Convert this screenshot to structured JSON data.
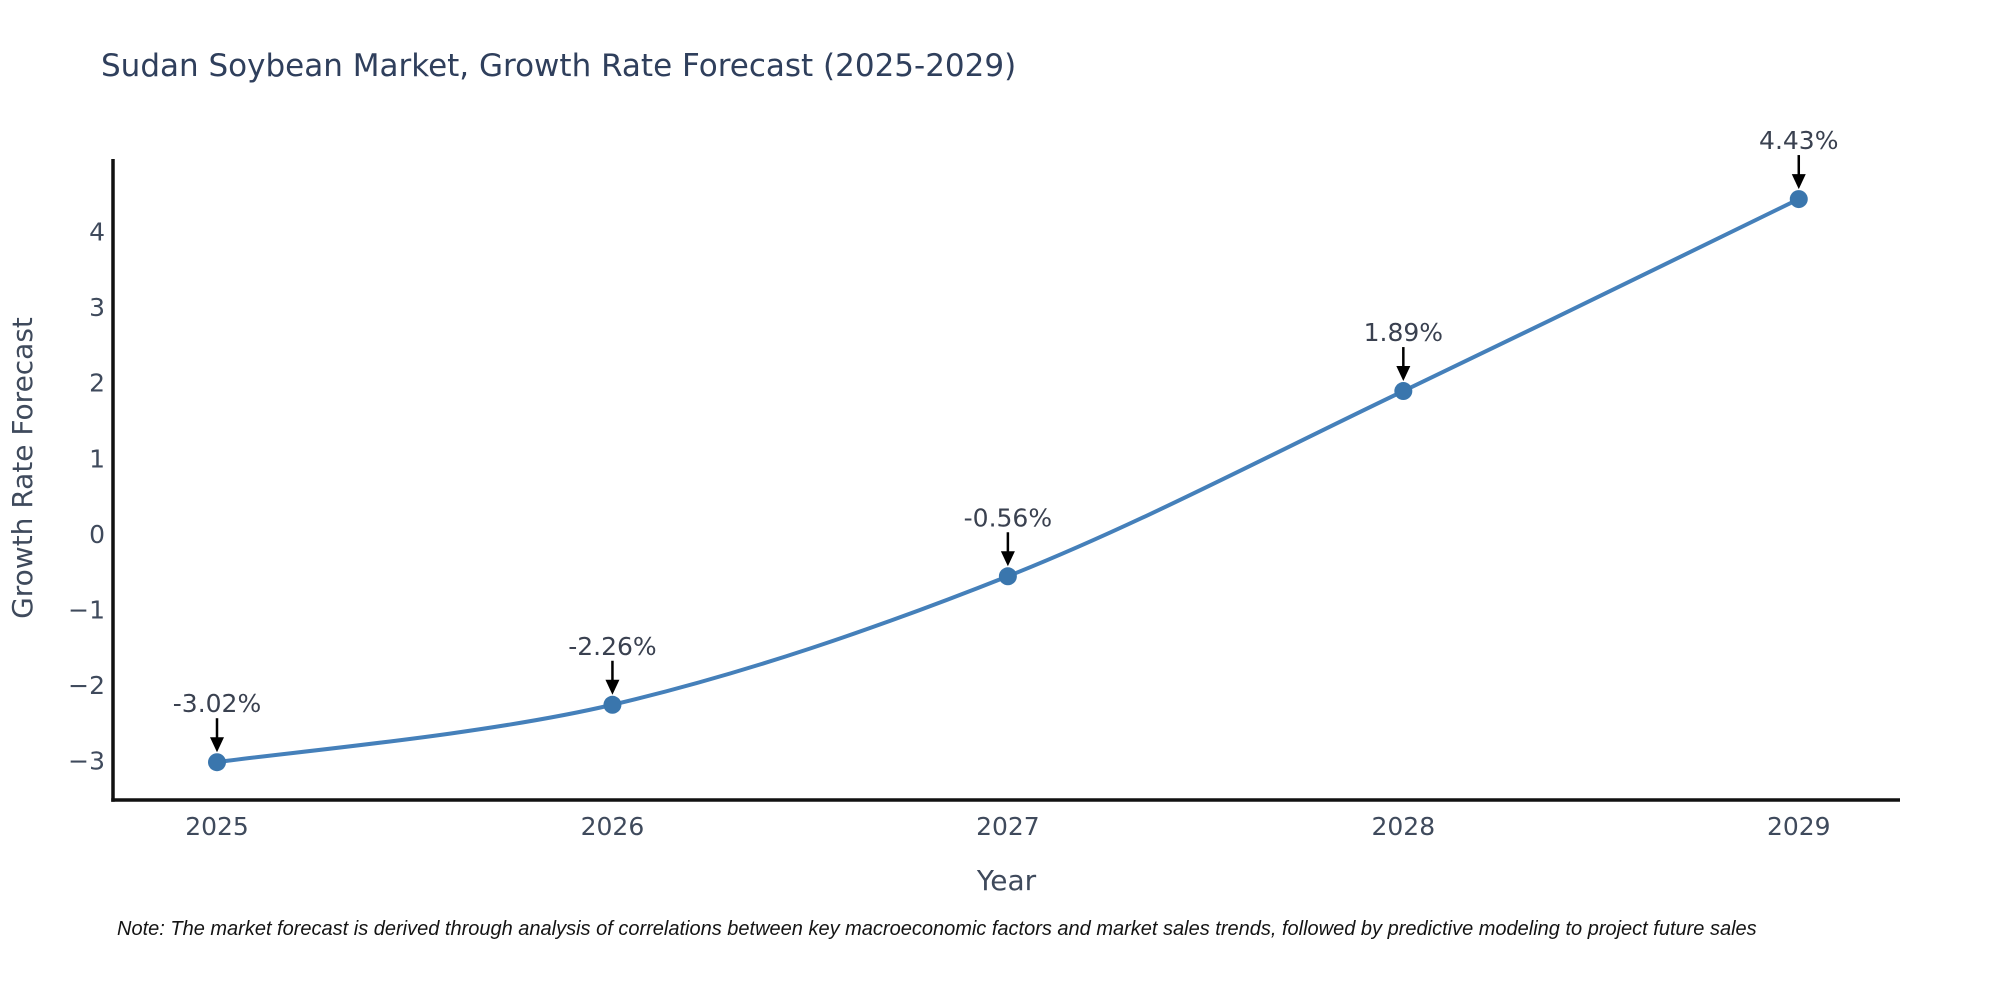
{
  "title": "Sudan Soybean Market, Growth Rate Forecast (2025-2029)",
  "note": "Note: The market forecast is derived through analysis of correlations between key macroeconomic factors and market sales trends, followed by predictive modeling to project future sales",
  "chart_data": {
    "type": "line",
    "title": "Sudan Soybean Market, Growth Rate Forecast (2025-2029)",
    "xlabel": "Year",
    "ylabel": "Growth Rate Forecast",
    "x": [
      2025,
      2026,
      2027,
      2028,
      2029
    ],
    "values": [
      -3.02,
      -2.26,
      -0.56,
      1.89,
      4.43
    ],
    "point_labels": [
      "-3.02%",
      "-2.26%",
      "-0.56%",
      "1.89%",
      "4.43%"
    ],
    "x_tick_labels": [
      "2025",
      "2026",
      "2027",
      "2028",
      "2029"
    ],
    "y_ticks": [
      {
        "value": 4,
        "label": "4"
      },
      {
        "value": 3,
        "label": "3"
      },
      {
        "value": 2,
        "label": "2"
      },
      {
        "value": 1,
        "label": "1"
      },
      {
        "value": 0,
        "label": "0"
      },
      {
        "value": -1,
        "label": "−1"
      },
      {
        "value": -2,
        "label": "−2"
      },
      {
        "value": -3,
        "label": "−3"
      }
    ],
    "xlim": [
      2024.737,
      2029.256
    ],
    "ylim": [
      -3.52,
      4.96
    ],
    "line_shape": "spline",
    "grid": false,
    "legend_position": "none",
    "colors": {
      "line": "#4580ba",
      "marker": "#3a76ad",
      "arrow": "#000000",
      "axis": "#111111",
      "title": "#2f3f5c",
      "tick": "#3f4a5c",
      "annotation": "#3a4150",
      "note": "#141414"
    }
  }
}
